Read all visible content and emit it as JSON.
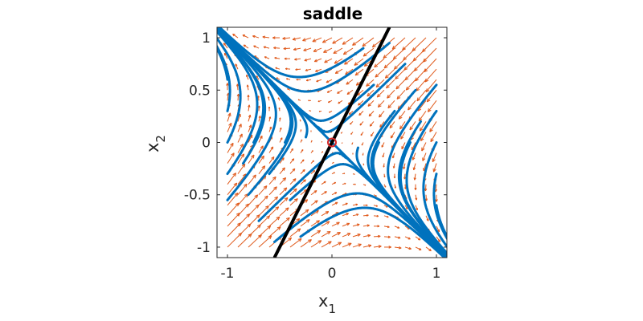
{
  "chart_data": {
    "type": "streamplot",
    "title": "saddle",
    "xlabel": "x",
    "xlabel_sub": "1",
    "ylabel": "x",
    "ylabel_sub": "2",
    "xlim": [
      -1.1,
      1.1
    ],
    "ylim": [
      -1.1,
      1.1
    ],
    "xticks": [
      -1,
      0,
      1
    ],
    "xtick_labels": [
      "-1",
      "0",
      "1"
    ],
    "yticks": [
      1,
      0.5,
      0,
      -0.5,
      -1
    ],
    "ytick_labels": [
      "1",
      "0.5",
      "0",
      "-0.5",
      "-1"
    ],
    "system": {
      "type": "linear-saddle",
      "a": -1,
      "b": -2,
      "c": -2,
      "d": -1
    },
    "equilibrium": {
      "x": 0,
      "y": 0,
      "color": "#d62728"
    },
    "unstable_manifold": {
      "color": "#000000",
      "points": [
        [
          -0.55,
          -1.1
        ],
        [
          0.55,
          1.1
        ]
      ]
    },
    "stable_manifold": [
      [
        -1.1,
        1.1
      ],
      [
        1.1,
        -1.1
      ]
    ],
    "trajectory_color": "#0072bd",
    "arrow_color": "#e05a1c",
    "trajectory_starts": [
      [
        -1.0,
        0.0
      ],
      [
        -1.0,
        0.3
      ],
      [
        -1.0,
        0.6
      ],
      [
        -1.0,
        -0.3
      ],
      [
        -1.0,
        -0.55
      ],
      [
        -0.85,
        -0.2
      ],
      [
        -0.8,
        -0.5
      ],
      [
        -0.75,
        0.0
      ],
      [
        -0.7,
        -0.75
      ],
      [
        -0.6,
        -0.3
      ],
      [
        -0.55,
        -0.95
      ],
      [
        -0.45,
        0.0
      ],
      [
        -0.4,
        -0.55
      ],
      [
        -0.25,
        0.05
      ],
      [
        -0.3,
        -0.9
      ],
      [
        1.0,
        0.0
      ],
      [
        1.0,
        -0.3
      ],
      [
        1.0,
        -0.6
      ],
      [
        1.0,
        0.3
      ],
      [
        1.0,
        0.55
      ],
      [
        0.85,
        0.2
      ],
      [
        0.8,
        0.5
      ],
      [
        0.75,
        0.0
      ],
      [
        0.7,
        0.75
      ],
      [
        0.6,
        0.3
      ],
      [
        0.55,
        0.95
      ],
      [
        0.45,
        0.0
      ],
      [
        0.4,
        0.55
      ],
      [
        0.25,
        -0.05
      ],
      [
        0.3,
        0.9
      ]
    ],
    "arrow_grid": {
      "x_from": -1.0,
      "x_to": 1.0,
      "y_from": -1.0,
      "y_to": 1.0,
      "step": 0.1
    }
  }
}
